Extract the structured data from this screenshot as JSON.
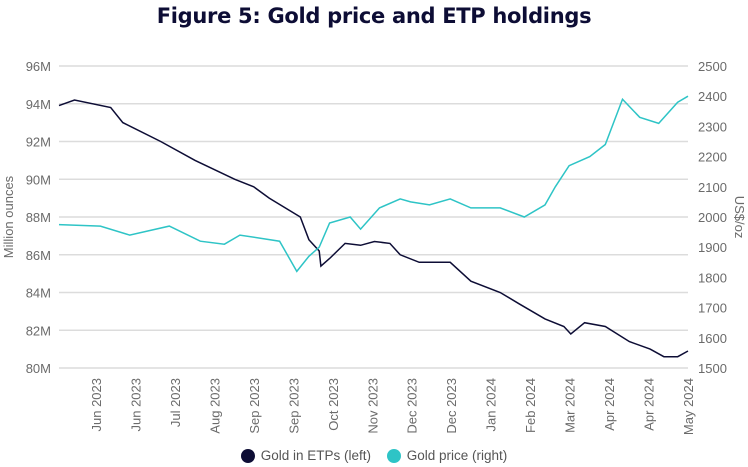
{
  "chart_data": {
    "type": "line",
    "title": "Figure 5: Gold price and ETP holdings",
    "ylabel_left": "Million ounces",
    "ylabel_right": "US$/oz",
    "ylim_left": [
      80,
      96
    ],
    "ylim_right": [
      1500,
      2500
    ],
    "yticks_left": [
      "80M",
      "82M",
      "84M",
      "86M",
      "88M",
      "90M",
      "92M",
      "94M",
      "96M"
    ],
    "yticks_right": [
      "1500",
      "1600",
      "1700",
      "1800",
      "1900",
      "2000",
      "2100",
      "2200",
      "2300",
      "2400",
      "2500"
    ],
    "xlim_days": [
      0,
      365
    ],
    "xtick_labels": [
      "Jun 2023",
      "Jun 2023",
      "Jul 2023",
      "Aug 2023",
      "Sep 2023",
      "Sep 2023",
      "Oct 2023",
      "Nov 2023",
      "Dec 2023",
      "Dec 2023",
      "Jan 2024",
      "Feb 2024",
      "Mar 2024",
      "Apr 2024",
      "Apr 2024",
      "May 2024"
    ],
    "grid": true,
    "legend_placement": "bottom",
    "series": [
      {
        "name": "Gold in ETPs (left)",
        "axis": "left",
        "color": "#0d0d35",
        "x": [
          0,
          9,
          30,
          37,
          59,
          79,
          102,
          113,
          122,
          140,
          145,
          151,
          152,
          157,
          166,
          175,
          183,
          192,
          198,
          209,
          227,
          239,
          256,
          267,
          282,
          293,
          297,
          305,
          317,
          331,
          343,
          351,
          359,
          365
        ],
        "y": [
          93.9,
          94.2,
          93.8,
          93,
          92,
          91,
          90,
          89.6,
          89,
          88,
          86.8,
          86.2,
          85.4,
          85.8,
          86.6,
          86.5,
          86.7,
          86.6,
          86,
          85.6,
          85.6,
          84.6,
          84,
          83.4,
          82.6,
          82.2,
          81.8,
          82.4,
          82.2,
          81.4,
          81,
          80.6,
          80.6,
          80.9
        ]
      },
      {
        "name": "Gold price (right)",
        "axis": "right",
        "color": "#2ec4c6",
        "x": [
          0,
          24,
          41,
          64,
          82,
          96,
          105,
          128,
          138,
          145,
          151,
          157,
          169,
          175,
          186,
          198,
          204,
          215,
          227,
          239,
          256,
          270,
          282,
          288,
          296,
          308,
          317,
          327,
          337,
          348,
          359,
          365
        ],
        "y": [
          1975,
          1970,
          1940,
          1970,
          1920,
          1910,
          1940,
          1920,
          1820,
          1870,
          1900,
          1980,
          2000,
          1960,
          2030,
          2060,
          2050,
          2040,
          2060,
          2030,
          2030,
          2000,
          2040,
          2100,
          2170,
          2200,
          2240,
          2390,
          2330,
          2310,
          2380,
          2400
        ]
      }
    ]
  }
}
